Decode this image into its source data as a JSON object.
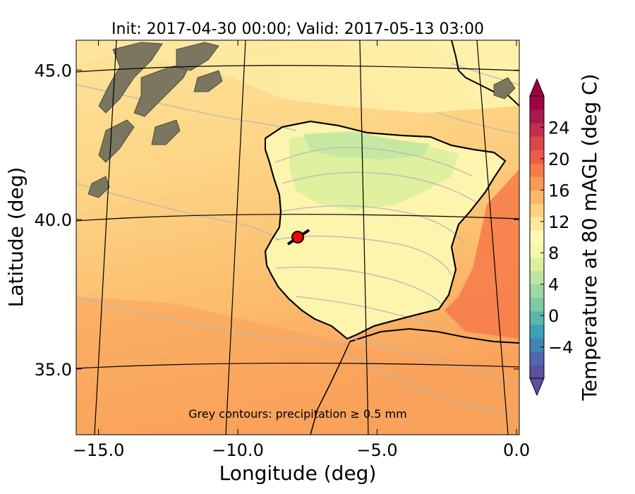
{
  "chart_data": {
    "type": "heatmap",
    "title": "Init: 2017-04-30 00:00; Valid: 2017-05-13 03:00",
    "xlabel": "Longitude (deg)",
    "ylabel": "Latitude (deg)",
    "xlim": [
      -15.8,
      0.1
    ],
    "ylim": [
      32.8,
      46.0
    ],
    "x_ticks": [
      -15.0,
      -10.0,
      -5.0,
      0.0
    ],
    "x_tick_labels": [
      "−15.0",
      "−10.0",
      "−5.0",
      "0.0"
    ],
    "y_ticks": [
      35.0,
      40.0,
      45.0
    ],
    "y_tick_labels": [
      "35.0",
      "40.0",
      "45.0"
    ],
    "grid": true,
    "annotation": "Grey contours: precipitation ≥ 0.5 mm",
    "colorbar": {
      "label": "Temperature at 80 mAGL (deg C)",
      "colormap": "Spectral_r",
      "min": -8,
      "max": 28,
      "ticks": [
        -4,
        0,
        4,
        8,
        12,
        16,
        20,
        24
      ],
      "tick_labels": [
        "−4",
        "0",
        "4",
        "8",
        "12",
        "16",
        "20",
        "24"
      ],
      "extend": "both",
      "colors": [
        "#5e4fa2",
        "#4f69ad",
        "#4185b5",
        "#3ba1b5",
        "#58b7a9",
        "#7bcaa4",
        "#9cd7a4",
        "#bee5a0",
        "#dbf09b",
        "#f3f9a8",
        "#fefbb8",
        "#fee89a",
        "#fed281",
        "#fdb768",
        "#fa9857",
        "#f67a4a",
        "#ea5d46",
        "#da4649",
        "#c3304d",
        "#a61b4b",
        "#9e0142"
      ]
    },
    "marker": {
      "lon": -7.6,
      "lat": 39.3,
      "color": "#ff0000"
    }
  }
}
